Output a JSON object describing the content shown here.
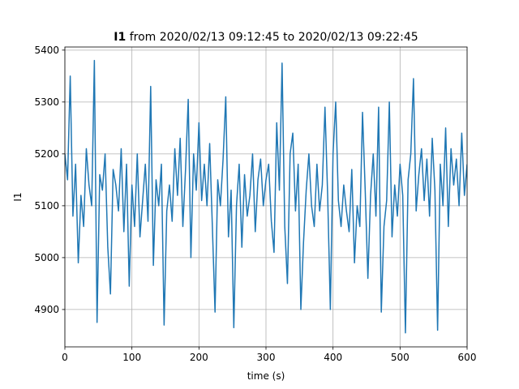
{
  "chart_data": {
    "type": "line",
    "title_parts": [
      "I1",
      "from 2020/02/13 09:12:45 to 2020/02/13 09:22:45"
    ],
    "xlabel": "time (s)",
    "ylabel": "I1",
    "x": [
      0,
      4,
      8,
      12,
      16,
      20,
      24,
      28,
      32,
      36,
      40,
      44,
      48,
      52,
      56,
      60,
      64,
      68,
      72,
      76,
      80,
      84,
      88,
      92,
      96,
      100,
      104,
      108,
      112,
      116,
      120,
      124,
      128,
      132,
      136,
      140,
      144,
      148,
      152,
      156,
      160,
      164,
      168,
      172,
      176,
      180,
      184,
      188,
      192,
      196,
      200,
      204,
      208,
      212,
      216,
      220,
      224,
      228,
      232,
      236,
      240,
      244,
      248,
      252,
      256,
      260,
      264,
      268,
      272,
      276,
      280,
      284,
      288,
      292,
      296,
      300,
      304,
      308,
      312,
      316,
      320,
      324,
      328,
      332,
      336,
      340,
      344,
      348,
      352,
      356,
      360,
      364,
      368,
      372,
      376,
      380,
      384,
      388,
      392,
      396,
      400,
      404,
      408,
      412,
      416,
      420,
      424,
      428,
      432,
      436,
      440,
      444,
      448,
      452,
      456,
      460,
      464,
      468,
      472,
      476,
      480,
      484,
      488,
      492,
      496,
      500,
      504,
      508,
      512,
      516,
      520,
      524,
      528,
      532,
      536,
      540,
      544,
      548,
      552,
      556,
      560,
      564,
      568,
      572,
      576,
      580,
      584,
      588,
      592,
      596,
      600
    ],
    "series": [
      {
        "name": "I1",
        "color": "#1f77b4",
        "values": [
          5200,
          5150,
          5350,
          5080,
          5180,
          4990,
          5120,
          5060,
          5210,
          5140,
          5100,
          5380,
          4875,
          5160,
          5130,
          5200,
          5020,
          4930,
          5170,
          5140,
          5090,
          5210,
          5050,
          5180,
          4945,
          5140,
          5060,
          5200,
          5040,
          5110,
          5180,
          5070,
          5330,
          4985,
          5150,
          5100,
          5180,
          4870,
          5090,
          5140,
          5070,
          5210,
          5120,
          5230,
          5060,
          5170,
          5305,
          5000,
          5200,
          5130,
          5260,
          5110,
          5180,
          5100,
          5220,
          5060,
          4895,
          5150,
          5100,
          5190,
          5310,
          5040,
          5130,
          4865,
          5100,
          5180,
          5020,
          5160,
          5080,
          5120,
          5200,
          5050,
          5150,
          5190,
          5100,
          5150,
          5180,
          5070,
          5010,
          5260,
          5130,
          5375,
          5060,
          4950,
          5200,
          5240,
          5090,
          5180,
          4900,
          5030,
          5130,
          5200,
          5100,
          5060,
          5180,
          5090,
          5140,
          5290,
          5120,
          4900,
          5200,
          5300,
          5110,
          5060,
          5140,
          5090,
          5050,
          5170,
          4990,
          5100,
          5060,
          5280,
          5130,
          4960,
          5120,
          5200,
          5080,
          5290,
          4895,
          5060,
          5110,
          5300,
          5040,
          5140,
          5080,
          5180,
          5120,
          4855,
          5150,
          5200,
          5345,
          5090,
          5160,
          5210,
          5110,
          5190,
          5080,
          5230,
          5130,
          4860,
          5180,
          5100,
          5250,
          5060,
          5210,
          5140,
          5190,
          5100,
          5240,
          5120,
          5180
        ]
      }
    ],
    "xlim": [
      0,
      600
    ],
    "xticks": [
      0,
      100,
      200,
      300,
      400,
      500,
      600
    ],
    "ylim": [
      4828,
      5406
    ],
    "yticks": [
      4900,
      5000,
      5100,
      5200,
      5300,
      5400
    ],
    "grid": true
  }
}
